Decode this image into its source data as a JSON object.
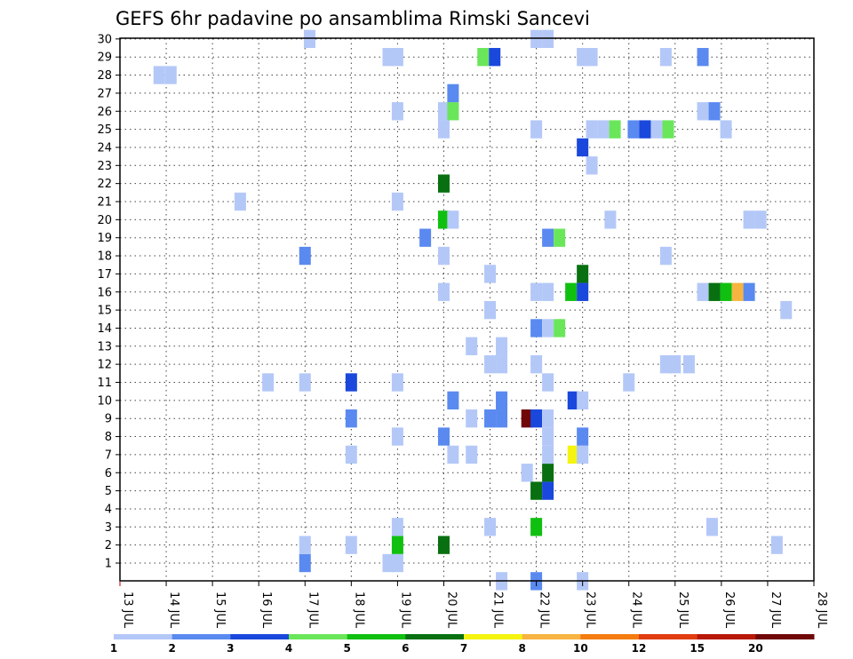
{
  "chart_data": {
    "type": "heatmap",
    "title": "GEFS 6hr padavine po ansamblima Rimski Sancevi",
    "xlabel": "",
    "ylabel": "",
    "x_range": [
      13,
      28
    ],
    "x_step_days": 0.25,
    "x_ticks": [
      "13 JUL",
      "14 JUL",
      "15 JUL",
      "16 JUL",
      "17 JUL",
      "18 JUL",
      "19 JUL",
      "20 JUL",
      "21 JUL",
      "22 JUL",
      "23 JUL",
      "24 JUL",
      "25 JUL",
      "26 JUL",
      "27 JUL",
      "28 JUL"
    ],
    "y_ticks": [
      "1",
      "2",
      "3",
      "4",
      "5",
      "6",
      "7",
      "8",
      "9",
      "10",
      "11",
      "12",
      "13",
      "14",
      "15",
      "16",
      "17",
      "18",
      "19",
      "20",
      "21",
      "22",
      "23",
      "24",
      "25",
      "26",
      "27",
      "28",
      "29",
      "30"
    ],
    "grid": true,
    "colorbar": {
      "labels": [
        "1",
        "2",
        "3",
        "4",
        "5",
        "6",
        "7",
        "8",
        "10",
        "12",
        "15",
        "20"
      ],
      "colors": [
        "#b4c8f8",
        "#5a8af0",
        "#1a48dc",
        "#6ae65a",
        "#10c010",
        "#087010",
        "#f4f410",
        "#f8b440",
        "#f47c10",
        "#e03c10",
        "#b81808",
        "#700808"
      ]
    },
    "cells": [
      [
        17.0,
        1,
        1
      ],
      [
        18.8,
        1,
        0
      ],
      [
        19.0,
        1,
        0
      ],
      [
        17.0,
        2,
        0
      ],
      [
        18.0,
        2,
        0
      ],
      [
        19.0,
        2,
        4
      ],
      [
        20.0,
        2,
        5
      ],
      [
        27.2,
        2,
        0
      ],
      [
        19.0,
        3,
        0
      ],
      [
        21.0,
        3,
        0
      ],
      [
        22.0,
        3,
        4
      ],
      [
        25.8,
        3,
        0
      ],
      [
        22.0,
        5,
        5
      ],
      [
        22.25,
        5,
        2
      ],
      [
        21.8,
        6,
        0
      ],
      [
        22.25,
        6,
        5
      ],
      [
        18.0,
        7,
        0
      ],
      [
        20.2,
        7,
        0
      ],
      [
        20.6,
        7,
        0
      ],
      [
        22.25,
        7,
        0
      ],
      [
        22.8,
        7,
        6
      ],
      [
        23.0,
        7,
        0
      ],
      [
        19.0,
        8,
        0
      ],
      [
        20.0,
        8,
        1
      ],
      [
        22.25,
        8,
        0
      ],
      [
        23.0,
        8,
        1
      ],
      [
        18.0,
        9,
        1
      ],
      [
        20.6,
        9,
        0
      ],
      [
        21.0,
        9,
        1
      ],
      [
        21.25,
        9,
        1
      ],
      [
        21.8,
        9,
        11
      ],
      [
        22.0,
        9,
        2
      ],
      [
        22.25,
        9,
        0
      ],
      [
        20.2,
        10,
        1
      ],
      [
        21.25,
        10,
        1
      ],
      [
        22.8,
        10,
        2
      ],
      [
        23.0,
        10,
        0
      ],
      [
        16.2,
        11,
        0
      ],
      [
        17.0,
        11,
        0
      ],
      [
        18.0,
        11,
        2
      ],
      [
        19.0,
        11,
        0
      ],
      [
        22.25,
        11,
        0
      ],
      [
        24.0,
        11,
        0
      ],
      [
        21.0,
        12,
        0
      ],
      [
        21.25,
        12,
        0
      ],
      [
        22.0,
        12,
        0
      ],
      [
        24.8,
        12,
        0
      ],
      [
        25.0,
        12,
        0
      ],
      [
        25.3,
        12,
        0
      ],
      [
        20.6,
        13,
        0
      ],
      [
        21.25,
        13,
        0
      ],
      [
        22.0,
        14,
        1
      ],
      [
        22.25,
        14,
        0
      ],
      [
        22.5,
        14,
        3
      ],
      [
        21.0,
        15,
        0
      ],
      [
        27.4,
        15,
        0
      ],
      [
        20.0,
        16,
        0
      ],
      [
        22.0,
        16,
        0
      ],
      [
        22.25,
        16,
        0
      ],
      [
        22.75,
        16,
        4
      ],
      [
        23.0,
        16,
        2
      ],
      [
        25.6,
        16,
        0
      ],
      [
        25.85,
        16,
        5
      ],
      [
        26.1,
        16,
        4
      ],
      [
        26.35,
        16,
        7
      ],
      [
        26.6,
        16,
        1
      ],
      [
        21.0,
        17,
        0
      ],
      [
        23.0,
        17,
        5
      ],
      [
        17.0,
        18,
        1
      ],
      [
        20.0,
        18,
        0
      ],
      [
        24.8,
        18,
        0
      ],
      [
        19.6,
        19,
        1
      ],
      [
        22.25,
        19,
        1
      ],
      [
        22.5,
        19,
        3
      ],
      [
        20.0,
        20,
        4
      ],
      [
        20.2,
        20,
        0
      ],
      [
        23.6,
        20,
        0
      ],
      [
        26.6,
        20,
        0
      ],
      [
        26.85,
        20,
        0
      ],
      [
        15.6,
        21,
        0
      ],
      [
        19.0,
        21,
        0
      ],
      [
        20.0,
        22,
        5
      ],
      [
        23.2,
        23,
        0
      ],
      [
        23.0,
        24,
        2
      ],
      [
        20.0,
        25,
        0
      ],
      [
        22.0,
        25,
        0
      ],
      [
        23.2,
        25,
        0
      ],
      [
        23.45,
        25,
        0
      ],
      [
        23.7,
        25,
        3
      ],
      [
        24.1,
        25,
        1
      ],
      [
        24.35,
        25,
        2
      ],
      [
        24.6,
        25,
        0
      ],
      [
        24.85,
        25,
        3
      ],
      [
        26.1,
        25,
        0
      ],
      [
        19.0,
        26,
        0
      ],
      [
        20.0,
        26,
        0
      ],
      [
        20.2,
        26,
        3
      ],
      [
        25.6,
        26,
        0
      ],
      [
        25.85,
        26,
        1
      ],
      [
        20.2,
        27,
        1
      ],
      [
        13.85,
        28,
        0
      ],
      [
        14.1,
        28,
        0
      ],
      [
        18.8,
        29,
        0
      ],
      [
        19.0,
        29,
        0
      ],
      [
        20.85,
        29,
        3
      ],
      [
        21.1,
        29,
        2
      ],
      [
        23.0,
        29,
        0
      ],
      [
        23.2,
        29,
        0
      ],
      [
        24.8,
        29,
        0
      ],
      [
        25.6,
        29,
        1
      ],
      [
        17.1,
        30,
        0
      ],
      [
        22.0,
        30,
        0
      ],
      [
        22.25,
        30,
        0
      ],
      [
        21.25,
        0,
        0
      ],
      [
        22.0,
        0,
        1
      ],
      [
        23.0,
        0,
        0
      ]
    ]
  }
}
